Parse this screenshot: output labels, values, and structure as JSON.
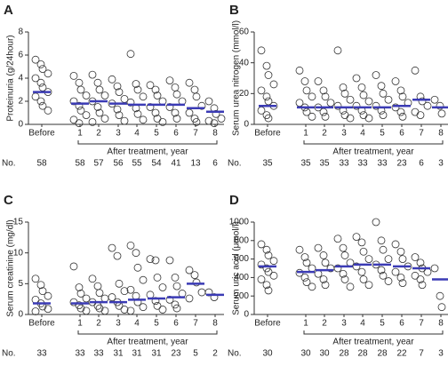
{
  "chart_data": [
    {
      "type": "dot",
      "panel": "A",
      "y_label": "Proteinuria (g/24hour)",
      "ylim": [
        0,
        8
      ],
      "yticks": [
        0,
        2,
        4,
        6,
        8
      ],
      "categories": [
        "Before",
        "1",
        "2",
        "3",
        "4",
        "5",
        "6",
        "7",
        "8"
      ],
      "group_label": "After treatment, year",
      "n_label": "No.",
      "n": [
        58,
        58,
        57,
        56,
        55,
        54,
        41,
        13,
        6
      ],
      "means": [
        2.8,
        1.8,
        2.0,
        1.8,
        1.7,
        1.7,
        1.7,
        1.4,
        1.1
      ],
      "mean_color": "#3b3bb5",
      "points": [
        [
          5.6,
          5.2,
          4.8,
          4.4,
          4.0,
          3.6,
          3.2,
          2.8,
          2.4,
          2.0,
          1.6,
          1.2
        ],
        [
          4.2,
          3.6,
          3.0,
          2.5,
          2.0,
          1.6,
          1.2,
          0.8,
          0.4,
          0.1
        ],
        [
          4.3,
          3.6,
          3.0,
          2.5,
          2.0,
          1.5,
          1.0,
          0.5,
          0.2
        ],
        [
          3.9,
          3.3,
          2.8,
          2.2,
          1.8,
          1.3,
          0.8,
          0.3
        ],
        [
          6.1,
          3.5,
          3.0,
          2.4,
          1.9,
          1.4,
          0.9,
          0.4
        ],
        [
          3.4,
          3.0,
          2.5,
          2.0,
          1.5,
          1.0,
          0.5,
          0.2
        ],
        [
          3.8,
          3.2,
          2.6,
          2.0,
          1.5,
          1.0,
          0.5
        ],
        [
          3.6,
          3.0,
          2.4,
          1.6,
          1.0,
          0.5,
          0.2
        ],
        [
          2.0,
          1.4,
          0.9,
          0.5,
          0.3,
          0.1
        ]
      ]
    },
    {
      "type": "dot",
      "panel": "B",
      "y_label": "Serum urea nitrogen (mmol/l)",
      "ylim": [
        0,
        60
      ],
      "yticks": [
        0,
        20,
        40,
        60
      ],
      "categories": [
        "Before",
        "1",
        "2",
        "3",
        "4",
        "5",
        "6",
        "7",
        "8"
      ],
      "group_label": "After treatment, year",
      "n_label": "No.",
      "n": [
        35,
        35,
        35,
        33,
        33,
        33,
        23,
        6,
        3
      ],
      "means": [
        12,
        11,
        11,
        11,
        11,
        11,
        12,
        16,
        11
      ],
      "mean_color": "#3b3bb5",
      "points": [
        [
          48,
          38,
          32,
          26,
          22,
          18,
          15,
          12,
          9,
          6,
          4
        ],
        [
          35,
          28,
          22,
          18,
          14,
          11,
          8,
          5
        ],
        [
          28,
          22,
          18,
          14,
          11,
          8,
          5
        ],
        [
          48,
          24,
          20,
          16,
          12,
          9,
          6,
          4
        ],
        [
          30,
          24,
          19,
          15,
          12,
          9,
          6,
          4
        ],
        [
          32,
          25,
          20,
          16,
          12,
          9,
          6
        ],
        [
          28,
          22,
          18,
          14,
          11,
          8,
          5
        ],
        [
          35,
          18,
          15,
          12,
          8,
          6
        ],
        [
          16,
          12,
          7
        ]
      ]
    },
    {
      "type": "dot",
      "panel": "C",
      "y_label": "Serum creatinine (mg/dl)",
      "ylim": [
        0,
        15
      ],
      "yticks": [
        0,
        5,
        10,
        15
      ],
      "categories": [
        "Before",
        "1",
        "2",
        "3",
        "4",
        "5",
        "6",
        "7",
        "8"
      ],
      "group_label": "After treatment, year",
      "n_label": "No.",
      "n": [
        33,
        33,
        33,
        31,
        31,
        31,
        23,
        5,
        2
      ],
      "means": [
        1.8,
        1.8,
        2.0,
        2.0,
        2.4,
        2.6,
        2.8,
        5.0,
        3.2
      ],
      "mean_color": "#3b3bb5",
      "points": [
        [
          5.8,
          4.8,
          3.8,
          3.0,
          2.4,
          1.8,
          1.3,
          0.9,
          0.5
        ],
        [
          7.8,
          4.4,
          3.4,
          2.6,
          2.0,
          1.5,
          1.0,
          0.6
        ],
        [
          5.8,
          4.6,
          3.5,
          2.6,
          2.0,
          1.4,
          1.0,
          0.6
        ],
        [
          10.8,
          9.5,
          5.0,
          3.8,
          2.8,
          2.0,
          1.4,
          0.8
        ],
        [
          11.2,
          10.0,
          7.6,
          5.6,
          4.0,
          3.0,
          2.0,
          1.2,
          0.6
        ],
        [
          9.0,
          8.8,
          6.0,
          4.4,
          3.2,
          2.2,
          1.4,
          0.8
        ],
        [
          8.8,
          6.0,
          4.6,
          3.4,
          2.4,
          1.6,
          1.0
        ],
        [
          7.2,
          6.4,
          5.2,
          3.6,
          2.6
        ],
        [
          3.6,
          2.8
        ]
      ]
    },
    {
      "type": "dot",
      "panel": "D",
      "y_label": "Serum uric acid (μmol/l)",
      "ylim": [
        0,
        1000
      ],
      "yticks": [
        0,
        200,
        400,
        600,
        800,
        1000
      ],
      "categories": [
        "Before",
        "1",
        "2",
        "3",
        "4",
        "5",
        "6",
        "7",
        "8"
      ],
      "group_label": "After treatment, year",
      "n_label": "No.",
      "n": [
        30,
        30,
        30,
        28,
        28,
        28,
        22,
        7,
        3
      ],
      "means": [
        520,
        460,
        480,
        520,
        540,
        540,
        520,
        500,
        380
      ],
      "mean_color": "#3b3bb5",
      "points": [
        [
          760,
          700,
          640,
          580,
          540,
          500,
          460,
          420,
          380,
          320,
          260
        ],
        [
          700,
          620,
          560,
          500,
          450,
          400,
          350,
          300
        ],
        [
          720,
          640,
          560,
          500,
          440,
          380,
          320
        ],
        [
          820,
          720,
          640,
          560,
          500,
          440,
          380,
          300
        ],
        [
          840,
          780,
          680,
          600,
          520,
          460,
          380,
          320
        ],
        [
          1000,
          800,
          700,
          600,
          540,
          480,
          420,
          360
        ],
        [
          760,
          680,
          600,
          520,
          460,
          400,
          340
        ],
        [
          620,
          560,
          500,
          460,
          420,
          380,
          320
        ],
        [
          500,
          200,
          80
        ]
      ]
    }
  ]
}
